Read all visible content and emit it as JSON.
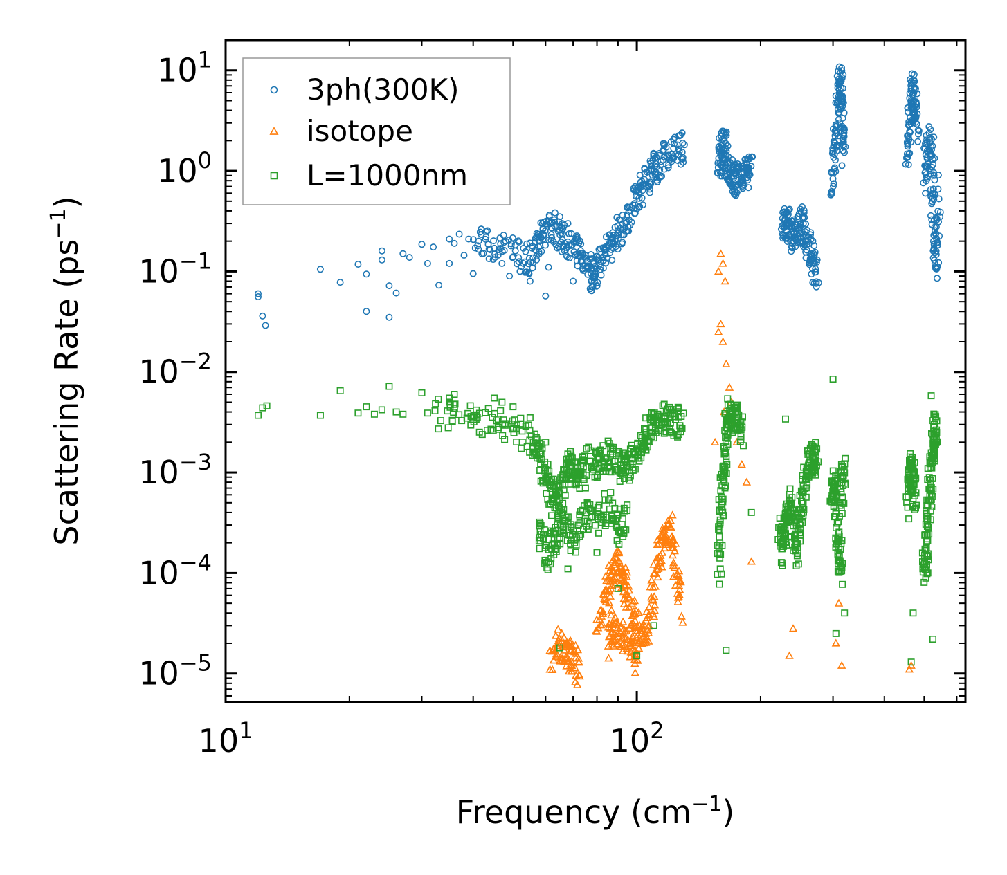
{
  "chart_data": {
    "type": "scatter",
    "title": "",
    "xlabel": "Frequency (cm",
    "xlabel_sup": "−1",
    "xlabel_end": ")",
    "ylabel": "Scattering Rate (ps",
    "ylabel_sup": "−1",
    "ylabel_end": ")",
    "xscale": "log",
    "yscale": "log",
    "xlim": [
      10,
      630
    ],
    "ylim": [
      5.2e-06,
      20
    ],
    "legend_position": "top-left",
    "x_ticks": [
      {
        "value": 10,
        "base": "10",
        "exp": "1"
      },
      {
        "value": 100,
        "base": "10",
        "exp": "2"
      }
    ],
    "y_ticks": [
      {
        "value": 10,
        "base": "10",
        "exp": "1"
      },
      {
        "value": 1,
        "base": "10",
        "exp": "0"
      },
      {
        "value": 0.1,
        "base": "10",
        "exp": "−1"
      },
      {
        "value": 0.01,
        "base": "10",
        "exp": "−2"
      },
      {
        "value": 0.001,
        "base": "10",
        "exp": "−3"
      },
      {
        "value": 0.0001,
        "base": "10",
        "exp": "−4"
      },
      {
        "value": 1e-05,
        "base": "10",
        "exp": "−5"
      }
    ],
    "series": [
      {
        "name": "3ph(300K)",
        "marker": "circle",
        "color": "#1f77b4",
        "points": [
          [
            12.0,
            0.06
          ],
          [
            12.0,
            0.056
          ],
          [
            12.3,
            0.036
          ],
          [
            12.5,
            0.029
          ],
          [
            17,
            0.105
          ],
          [
            19,
            0.078
          ],
          [
            21,
            0.118
          ],
          [
            22,
            0.094
          ],
          [
            22,
            0.04
          ],
          [
            24,
            0.16
          ],
          [
            24,
            0.13
          ],
          [
            25,
            0.072
          ],
          [
            25,
            0.035
          ],
          [
            26,
            0.061
          ],
          [
            27,
            0.15
          ],
          [
            28,
            0.138
          ],
          [
            30,
            0.186
          ],
          [
            31,
            0.12
          ],
          [
            32,
            0.175
          ],
          [
            33,
            0.073
          ],
          [
            35,
            0.21
          ],
          [
            35,
            0.12
          ],
          [
            36,
            0.19
          ],
          [
            37,
            0.235
          ],
          [
            38,
            0.145
          ],
          [
            39,
            0.21
          ],
          [
            40,
            0.095
          ],
          [
            41,
            0.18
          ],
          [
            42,
            0.15
          ],
          [
            43,
            0.22
          ],
          [
            45,
            0.17
          ],
          [
            47,
            0.12
          ],
          [
            48,
            0.2
          ],
          [
            49,
            0.09
          ],
          [
            50,
            0.14
          ],
          [
            52,
            0.1
          ],
          [
            53,
            0.17
          ],
          [
            55,
            0.08
          ],
          [
            57,
            0.13
          ],
          [
            58,
            0.2
          ],
          [
            60,
            0.057
          ],
          [
            61,
            0.11
          ],
          [
            65,
            0.35
          ],
          [
            68,
            0.3
          ],
          [
            70,
            0.08
          ]
        ],
        "bands": [
          [
            [
              40,
              0.2
            ],
            [
              45,
              0.18
            ],
            [
              50,
              0.16
            ],
            [
              55,
              0.13
            ],
            [
              58,
              0.2
            ],
            [
              60,
              0.25
            ],
            [
              63,
              0.27
            ],
            [
              66,
              0.22
            ],
            [
              70,
              0.18
            ],
            [
              73,
              0.15
            ],
            [
              76,
              0.12
            ],
            [
              78,
              0.09
            ],
            [
              80,
              0.11
            ],
            [
              84,
              0.16
            ],
            [
              88,
              0.2
            ],
            [
              92,
              0.28
            ],
            [
              96,
              0.38
            ],
            [
              100,
              0.55
            ],
            [
              104,
              0.75
            ],
            [
              108,
              0.95
            ],
            [
              112,
              1.15
            ],
            [
              118,
              1.35
            ],
            [
              124,
              1.6
            ],
            [
              130,
              1.7
            ]
          ],
          [
            [
              158,
              1.0
            ],
            [
              160,
              1.4
            ],
            [
              163,
              1.9
            ],
            [
              165,
              1.3
            ],
            [
              168,
              1.0
            ],
            [
              172,
              0.8
            ],
            [
              175,
              0.82
            ],
            [
              180,
              0.9
            ],
            [
              185,
              1.0
            ],
            [
              190,
              0.95
            ]
          ],
          [
            [
              225,
              0.25
            ],
            [
              230,
              0.32
            ],
            [
              235,
              0.28
            ],
            [
              240,
              0.22
            ],
            [
              250,
              0.35
            ],
            [
              255,
              0.25
            ],
            [
              262,
              0.18
            ],
            [
              268,
              0.12
            ],
            [
              275,
              0.09
            ]
          ],
          [
            [
              300,
              0.6
            ],
            [
              303,
              1.5
            ],
            [
              306,
              3.0
            ],
            [
              310,
              6.0
            ],
            [
              313,
              8.0
            ],
            [
              316,
              3.5
            ],
            [
              320,
              1.5
            ]
          ],
          [
            [
              455,
              1.2
            ],
            [
              460,
              3.0
            ],
            [
              465,
              5.0
            ],
            [
              470,
              7.0
            ],
            [
              475,
              4.0
            ],
            [
              480,
              2.5
            ]
          ],
          [
            [
              500,
              0.8
            ],
            [
              510,
              1.5
            ],
            [
              520,
              2.2
            ],
            [
              525,
              0.6
            ],
            [
              530,
              0.2
            ],
            [
              535,
              0.12
            ],
            [
              545,
              0.7
            ]
          ]
        ]
      },
      {
        "name": "isotope",
        "marker": "triangle",
        "color": "#ff7f0e",
        "points": [
          [
            158,
            0.1
          ],
          [
            160,
            0.15
          ],
          [
            162,
            0.12
          ],
          [
            164,
            0.08
          ],
          [
            160,
            0.03
          ],
          [
            162,
            0.02
          ],
          [
            165,
            0.012
          ],
          [
            168,
            0.007
          ],
          [
            170,
            0.005
          ],
          [
            172,
            0.003
          ],
          [
            175,
            0.002
          ],
          [
            180,
            0.0012
          ],
          [
            185,
            0.0008
          ],
          [
            190,
            0.00013
          ],
          [
            235,
            1.5e-05
          ],
          [
            240,
            2.8e-05
          ],
          [
            305,
            2e-05
          ],
          [
            310,
            5e-05
          ],
          [
            315,
            1.2e-05
          ],
          [
            460,
            1.1e-05
          ],
          [
            465,
            1.2e-05
          ],
          [
            155,
            0.002
          ],
          [
            158,
            0.025
          ],
          [
            163,
            0.004
          ]
        ],
        "bands": [
          [
            [
              62,
              1.2e-05
            ],
            [
              65,
              2e-05
            ],
            [
              68,
              1.6e-05
            ],
            [
              70,
              1.4e-05
            ],
            [
              72,
              1.1e-05
            ]
          ],
          [
            [
              80,
              3e-05
            ],
            [
              84,
              6e-05
            ],
            [
              87,
              0.0001
            ],
            [
              90,
              0.00012
            ],
            [
              93,
              8e-05
            ],
            [
              96,
              5e-05
            ],
            [
              100,
              3e-05
            ],
            [
              104,
              2e-05
            ],
            [
              108,
              4e-05
            ],
            [
              112,
              0.00012
            ],
            [
              116,
              0.00025
            ],
            [
              120,
              0.0003
            ],
            [
              124,
              0.00012
            ],
            [
              128,
              4e-05
            ]
          ],
          [
            [
              85,
              2e-05
            ],
            [
              88,
              3e-05
            ],
            [
              92,
              2.5e-05
            ],
            [
              96,
              1.8e-05
            ],
            [
              100,
              1.2e-05
            ]
          ]
        ]
      },
      {
        "name": "L=1000nm",
        "marker": "square",
        "color": "#2ca02c",
        "points": [
          [
            12.0,
            0.0037
          ],
          [
            12.3,
            0.0044
          ],
          [
            12.6,
            0.0046
          ],
          [
            17,
            0.0037
          ],
          [
            19,
            0.0065
          ],
          [
            21,
            0.0039
          ],
          [
            22,
            0.0045
          ],
          [
            23,
            0.0038
          ],
          [
            24,
            0.0042
          ],
          [
            25,
            0.0072
          ],
          [
            26,
            0.004
          ],
          [
            27,
            0.0038
          ],
          [
            30,
            0.0062
          ],
          [
            31,
            0.0039
          ],
          [
            35,
            0.0055
          ],
          [
            36,
            0.006
          ],
          [
            40,
            0.0035
          ],
          [
            45,
            0.0055
          ],
          [
            47,
            0.005
          ],
          [
            50,
            0.0045
          ],
          [
            55,
            0.0035
          ],
          [
            60,
            0.002
          ],
          [
            65,
            1.8e-05
          ],
          [
            68,
            0.00011
          ],
          [
            75,
            0.0007
          ],
          [
            80,
            0.00016
          ],
          [
            90,
            7e-05
          ],
          [
            100,
            1.5e-05
          ],
          [
            110,
            3e-05
          ],
          [
            165,
            1.7e-05
          ],
          [
            190,
            0.0004
          ],
          [
            230,
            0.0034
          ],
          [
            300,
            0.0085
          ],
          [
            305,
            2.5e-05
          ],
          [
            320,
            4e-05
          ],
          [
            465,
            1.3e-05
          ],
          [
            470,
            4e-05
          ],
          [
            520,
            0.0058
          ],
          [
            525,
            2.2e-05
          ]
        ],
        "bands": [
          [
            [
              32,
              0.0038
            ],
            [
              38,
              0.0036
            ],
            [
              44,
              0.0033
            ],
            [
              50,
              0.0028
            ],
            [
              55,
              0.0022
            ],
            [
              58,
              0.0015
            ],
            [
              60,
              0.0009
            ],
            [
              62,
              0.0006
            ],
            [
              64,
              0.00045
            ],
            [
              66,
              0.0008
            ],
            [
              68,
              0.0012
            ],
            [
              70,
              0.0011
            ],
            [
              72,
              0.0009
            ],
            [
              75,
              0.0013
            ],
            [
              80,
              0.0012
            ],
            [
              84,
              0.0015
            ],
            [
              88,
              0.0013
            ],
            [
              92,
              0.0011
            ],
            [
              96,
              0.0012
            ],
            [
              100,
              0.0015
            ],
            [
              104,
              0.002
            ],
            [
              108,
              0.0028
            ],
            [
              112,
              0.0032
            ],
            [
              118,
              0.0035
            ],
            [
              124,
              0.0032
            ],
            [
              130,
              0.003
            ]
          ],
          [
            [
              58,
              0.0003
            ],
            [
              60,
              0.00015
            ],
            [
              63,
              0.0002
            ],
            [
              66,
              0.00035
            ],
            [
              70,
              0.0002
            ],
            [
              75,
              0.0004
            ],
            [
              80,
              0.0003
            ],
            [
              86,
              0.0005
            ],
            [
              90,
              0.00025
            ],
            [
              95,
              0.0004
            ]
          ],
          [
            [
              158,
              0.0001
            ],
            [
              160,
              0.0003
            ],
            [
              162,
              0.0008
            ],
            [
              164,
              0.0015
            ],
            [
              166,
              0.003
            ],
            [
              168,
              0.004
            ],
            [
              172,
              0.0035
            ],
            [
              176,
              0.0033
            ],
            [
              180,
              0.0025
            ]
          ],
          [
            [
              222,
              0.0003
            ],
            [
              226,
              0.00015
            ],
            [
              230,
              0.0003
            ],
            [
              235,
              0.0005
            ],
            [
              240,
              0.0003
            ],
            [
              245,
              0.00015
            ],
            [
              250,
              0.0004
            ],
            [
              255,
              0.0008
            ],
            [
              260,
              0.0012
            ],
            [
              265,
              0.0015
            ],
            [
              270,
              0.0014
            ],
            [
              275,
              0.001
            ]
          ],
          [
            [
              298,
              0.0005
            ],
            [
              302,
              0.0008
            ],
            [
              305,
              0.0005
            ],
            [
              308,
              0.0002
            ],
            [
              312,
              0.0001
            ],
            [
              316,
              0.0008
            ],
            [
              320,
              0.0012
            ]
          ],
          [
            [
              455,
              0.0005
            ],
            [
              460,
              0.0009
            ],
            [
              465,
              0.0012
            ],
            [
              470,
              0.0008
            ],
            [
              475,
              0.0005
            ]
          ],
          [
            [
              500,
              0.0001
            ],
            [
              505,
              0.00015
            ],
            [
              510,
              0.0003
            ],
            [
              515,
              0.0006
            ],
            [
              520,
              0.001
            ],
            [
              525,
              0.0018
            ],
            [
              530,
              0.0025
            ],
            [
              535,
              0.0028
            ]
          ]
        ]
      }
    ]
  }
}
